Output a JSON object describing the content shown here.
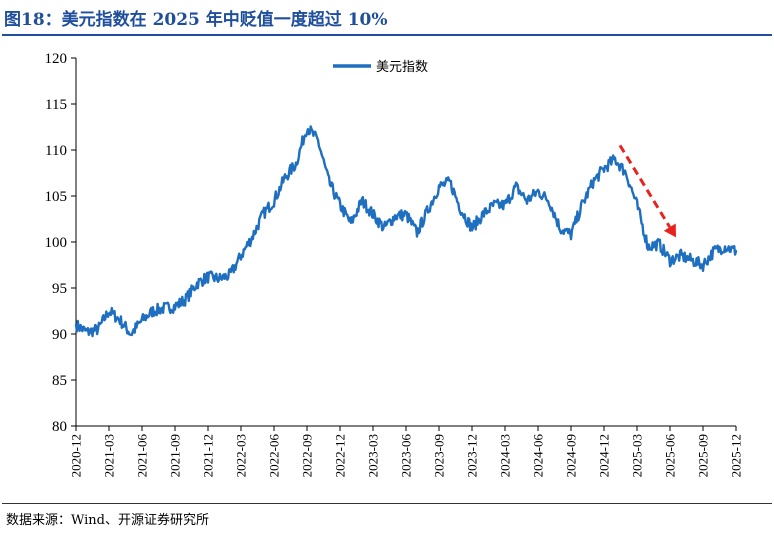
{
  "title": "图18：美元指数在 2025 年中贬值一度超过 10%",
  "source": "数据来源：Wind、开源证券研究所",
  "colors": {
    "title": "#1f4e9c",
    "series": "#1f6fc0",
    "arrow": "#e8231f"
  },
  "chart_data": {
    "type": "line",
    "title": "",
    "xlabel": "",
    "ylabel": "",
    "ylim": [
      80,
      120
    ],
    "yticks": [
      "80",
      "85",
      "90",
      "95",
      "100",
      "105",
      "110",
      "115",
      "120"
    ],
    "xticks": [
      "2020-12",
      "2021-03",
      "2021-06",
      "2021-09",
      "2021-12",
      "2022-03",
      "2022-06",
      "2022-09",
      "2022-12",
      "2023-03",
      "2023-06",
      "2023-09",
      "2023-12",
      "2024-03",
      "2024-06",
      "2024-09",
      "2024-12",
      "2025-03",
      "2025-06",
      "2025-09",
      "2025-12"
    ],
    "legend_position": "top-center",
    "grid": false,
    "annotation": "red dashed arrow pointing down from 2025-01 to 2025-07",
    "series": [
      {
        "name": "美元指数",
        "x": [
          "2020-12",
          "2021-01",
          "2021-02",
          "2021-03",
          "2021-04",
          "2021-05",
          "2021-06",
          "2021-07",
          "2021-08",
          "2021-09",
          "2021-10",
          "2021-11",
          "2021-12",
          "2022-01",
          "2022-02",
          "2022-03",
          "2022-04",
          "2022-05",
          "2022-06",
          "2022-07",
          "2022-08",
          "2022-09",
          "2022-10",
          "2022-11",
          "2022-12",
          "2023-01",
          "2023-02",
          "2023-03",
          "2023-04",
          "2023-05",
          "2023-06",
          "2023-07",
          "2023-08",
          "2023-09",
          "2023-10",
          "2023-11",
          "2023-12",
          "2024-01",
          "2024-02",
          "2024-03",
          "2024-04",
          "2024-05",
          "2024-06",
          "2024-07",
          "2024-08",
          "2024-09",
          "2024-10",
          "2024-11",
          "2024-12",
          "2025-01",
          "2025-02",
          "2025-03",
          "2025-04",
          "2025-05",
          "2025-06",
          "2025-07",
          "2025-08",
          "2025-09",
          "2025-10",
          "2025-11",
          "2025-12"
        ],
        "values": [
          91.0,
          90.2,
          90.5,
          92.5,
          91.5,
          90.0,
          91.5,
          92.5,
          92.8,
          93.0,
          93.8,
          95.5,
          96.2,
          96.0,
          96.4,
          98.5,
          100.5,
          103.0,
          104.5,
          107.0,
          108.5,
          112.5,
          111.0,
          106.5,
          104.0,
          102.0,
          104.5,
          103.0,
          101.5,
          102.8,
          103.0,
          101.0,
          103.5,
          106.0,
          106.5,
          103.5,
          101.5,
          103.0,
          104.0,
          104.0,
          106.0,
          104.5,
          105.5,
          104.5,
          101.5,
          100.8,
          104.0,
          106.5,
          108.0,
          109.0,
          107.5,
          104.0,
          99.5,
          99.8,
          98.0,
          98.5,
          98.0,
          97.5,
          99.0,
          99.5,
          99.0
        ]
      }
    ]
  }
}
